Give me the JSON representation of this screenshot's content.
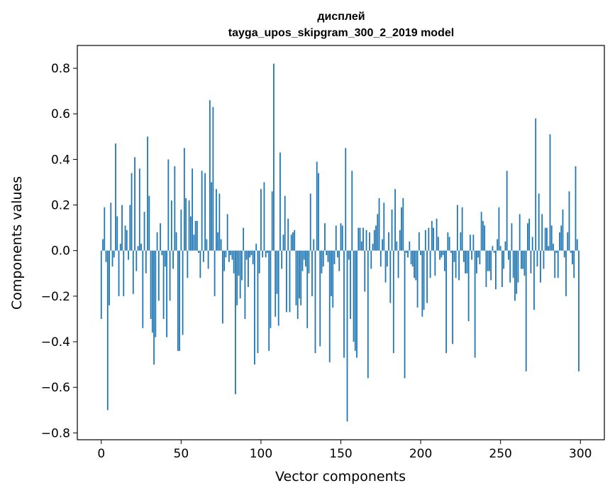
{
  "chart_data": {
    "type": "bar",
    "title": "дисплей",
    "subtitle": "tayga_upos_skipgram_300_2_2019 model",
    "xlabel": "Vector components",
    "ylabel": "Components values",
    "xlim": [
      -15,
      315
    ],
    "ylim": [
      -0.83,
      0.9
    ],
    "xticks": [
      0,
      50,
      100,
      150,
      200,
      250,
      300
    ],
    "yticks": [
      0.8,
      0.6,
      0.4,
      0.2,
      0.0,
      -0.2,
      -0.4,
      -0.6,
      -0.8
    ],
    "ytick_labels": [
      "0.8",
      "0.6",
      "0.4",
      "0.2",
      "0.0",
      "−0.2",
      "−0.4",
      "−0.6",
      "−0.8"
    ],
    "bar_color": "#1f77b4",
    "grid": false,
    "x": "0..299",
    "values": [
      -0.3,
      0.05,
      0.19,
      -0.05,
      -0.7,
      -0.24,
      0.21,
      -0.07,
      -0.03,
      0.47,
      0.15,
      -0.2,
      0.03,
      0.2,
      -0.2,
      0.11,
      0.09,
      -0.04,
      0.2,
      0.34,
      -0.19,
      0.41,
      -0.09,
      0.02,
      0.36,
      0.03,
      -0.34,
      0.17,
      -0.1,
      0.5,
      0.24,
      -0.3,
      -0.36,
      -0.5,
      -0.38,
      0.08,
      -0.22,
      0.12,
      -0.02,
      -0.3,
      -0.07,
      -0.38,
      0.4,
      -0.22,
      0.22,
      -0.08,
      0.37,
      0.08,
      -0.44,
      -0.44,
      0.18,
      -0.37,
      0.45,
      0.23,
      -0.12,
      0.22,
      0.15,
      0.36,
      0.07,
      0.13,
      0.13,
      -0.01,
      -0.12,
      0.35,
      -0.05,
      0.34,
      0.05,
      -0.08,
      0.66,
      0.3,
      0.63,
      -0.2,
      0.27,
      0.08,
      0.25,
      0.05,
      -0.32,
      -0.09,
      -0.03,
      0.16,
      -0.05,
      -0.02,
      -0.04,
      -0.1,
      -0.63,
      -0.24,
      -0.11,
      -0.21,
      -0.13,
      0.1,
      -0.3,
      -0.04,
      -0.16,
      -0.03,
      -0.02,
      -0.06,
      -0.5,
      0.03,
      -0.45,
      -0.1,
      0.27,
      -0.03,
      0.3,
      -0.03,
      -0.01,
      -0.44,
      -0.34,
      0.26,
      0.82,
      -0.29,
      -0.19,
      -0.33,
      0.43,
      -0.08,
      0.07,
      0.24,
      -0.27,
      0.14,
      -0.27,
      0.07,
      0.08,
      0.09,
      -0.24,
      -0.3,
      -0.21,
      -0.24,
      -0.09,
      -0.04,
      -0.07,
      -0.34,
      -0.1,
      0.25,
      -0.2,
      0.05,
      -0.45,
      0.39,
      0.34,
      -0.42,
      -0.1,
      -0.07,
      0.12,
      -0.02,
      -0.05,
      -0.49,
      -0.2,
      -0.25,
      -0.06,
      0.11,
      -0.03,
      -0.09,
      0.12,
      0.11,
      -0.47,
      0.45,
      -0.75,
      -0.04,
      -0.3,
      0.35,
      -0.4,
      -0.44,
      -0.47,
      0.1,
      0.1,
      0.04,
      0.1,
      -0.18,
      0.09,
      -0.56,
      0.08,
      -0.08,
      0.03,
      0.09,
      0.11,
      0.16,
      0.23,
      -0.07,
      0.05,
      0.21,
      -0.14,
      -0.07,
      0.08,
      -0.23,
      0.18,
      -0.45,
      0.27,
      0.04,
      -0.12,
      0.09,
      0.19,
      0.23,
      -0.56,
      -0.01,
      -0.03,
      0.04,
      -0.06,
      -0.07,
      -0.12,
      -0.13,
      -0.25,
      0.08,
      -0.02,
      -0.29,
      -0.26,
      0.09,
      -0.23,
      0.1,
      -0.12,
      0.13,
      0.1,
      -0.11,
      0.14,
      0.06,
      -0.04,
      -0.03,
      -0.02,
      -0.09,
      -0.45,
      0.08,
      0.06,
      -0.01,
      -0.41,
      -0.05,
      -0.12,
      0.2,
      -0.13,
      0.08,
      0.19,
      -0.05,
      -0.1,
      -0.1,
      -0.31,
      0.07,
      -0.04,
      0.07,
      -0.47,
      -0.1,
      -0.03,
      -0.06,
      0.17,
      0.13,
      0.11,
      -0.16,
      -0.09,
      -0.09,
      -0.13,
      0.02,
      -0.01,
      -0.17,
      0.05,
      0.19,
      0.02,
      -0.16,
      -0.08,
      0.04,
      0.35,
      -0.04,
      -0.14,
      0.12,
      -0.12,
      -0.22,
      -0.19,
      -0.14,
      0.16,
      -0.08,
      -0.08,
      -0.11,
      -0.53,
      0.12,
      0.14,
      -0.1,
      0.06,
      -0.26,
      0.58,
      -0.07,
      0.25,
      -0.14,
      0.16,
      -0.08,
      0.1,
      0.1,
      0.02,
      0.51,
      0.11,
      0.03,
      -0.12,
      -0.01,
      -0.12,
      0.08,
      0.11,
      0.18,
      -0.03,
      -0.2,
      0.08,
      0.26,
      -0.01,
      -0.06,
      -0.12,
      0.37,
      0.05,
      -0.53
    ]
  }
}
